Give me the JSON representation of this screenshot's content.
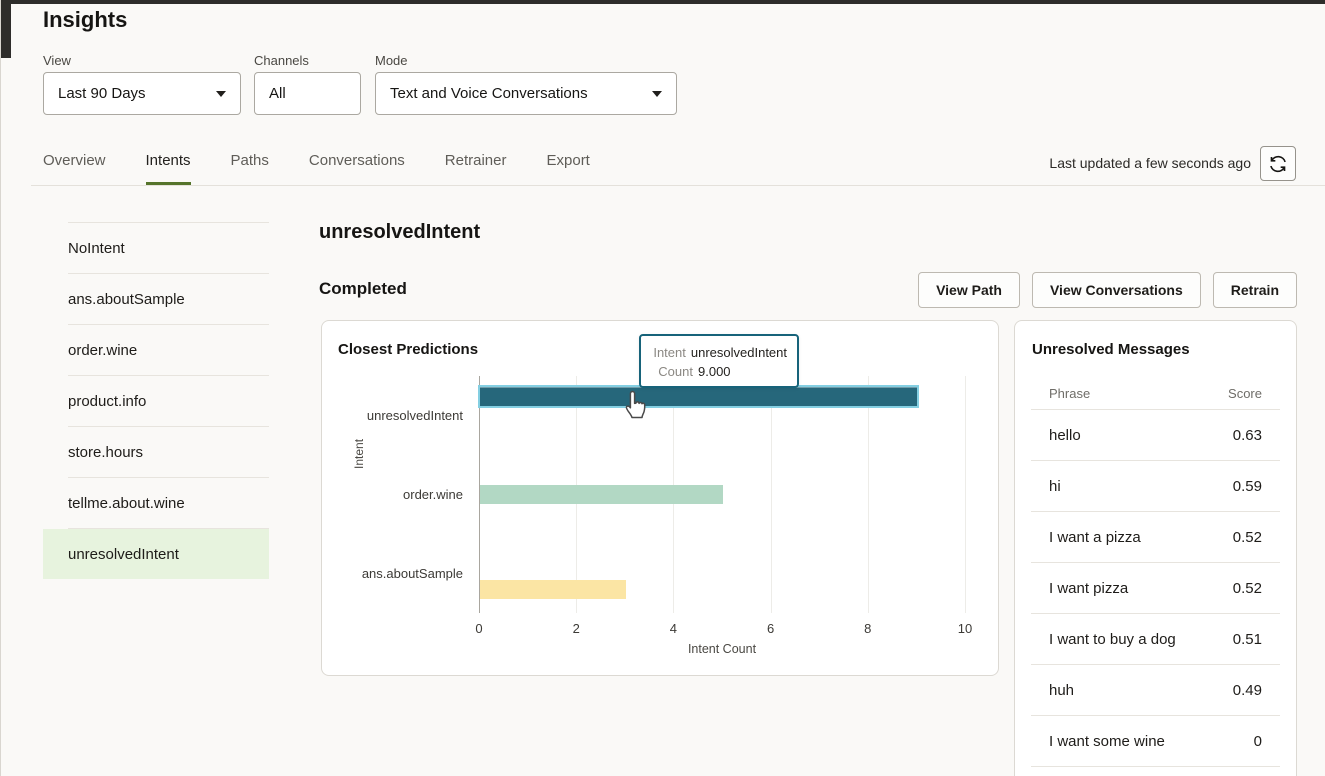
{
  "page": {
    "title": "Insights"
  },
  "filters": {
    "view": {
      "label": "View",
      "value": "Last 90 Days"
    },
    "channels": {
      "label": "Channels",
      "value": "All"
    },
    "mode": {
      "label": "Mode",
      "value": "Text and Voice Conversations"
    }
  },
  "tabs": {
    "items": [
      {
        "label": "Overview",
        "active": false
      },
      {
        "label": "Intents",
        "active": true
      },
      {
        "label": "Paths",
        "active": false
      },
      {
        "label": "Conversations",
        "active": false
      },
      {
        "label": "Retrainer",
        "active": false
      },
      {
        "label": "Export",
        "active": false
      }
    ],
    "last_updated": "Last updated a few seconds ago",
    "refresh_icon": "refresh-icon"
  },
  "sidebar": {
    "items": [
      {
        "label": "NoIntent",
        "selected": false
      },
      {
        "label": "ans.aboutSample",
        "selected": false
      },
      {
        "label": "order.wine",
        "selected": false
      },
      {
        "label": "product.info",
        "selected": false
      },
      {
        "label": "store.hours",
        "selected": false
      },
      {
        "label": "tellme.about.wine",
        "selected": false
      },
      {
        "label": "unresolvedIntent",
        "selected": true
      }
    ]
  },
  "main": {
    "title": "unresolvedIntent",
    "status": "Completed",
    "actions": [
      "View Path",
      "View Conversations",
      "Retrain"
    ]
  },
  "chart_data": {
    "type": "bar",
    "orientation": "horizontal",
    "title": "Closest Predictions",
    "categories": [
      "unresolvedIntent",
      "order.wine",
      "ans.aboutSample"
    ],
    "values": [
      9,
      5,
      3
    ],
    "bar_colors": [
      "#26677b",
      "#b2d8c4",
      "#fbe5a4"
    ],
    "highlighted_category": "unresolvedIntent",
    "highlight_outline_color": "#84cfe2",
    "xlabel": "Intent Count",
    "ylabel": "Intent",
    "xlim": [
      0,
      10
    ],
    "xticks": [
      0,
      2,
      4,
      6,
      8,
      10
    ],
    "grid": true,
    "tooltip": {
      "intent_label": "Intent",
      "intent_value": "unresolvedIntent",
      "count_label": "Count",
      "count_value": "9.000"
    }
  },
  "messages_panel": {
    "title": "Unresolved Messages",
    "columns": [
      "Phrase",
      "Score"
    ],
    "rows": [
      {
        "phrase": "hello",
        "score": "0.63"
      },
      {
        "phrase": "hi",
        "score": "0.59"
      },
      {
        "phrase": "I want a pizza",
        "score": "0.52"
      },
      {
        "phrase": "I want pizza",
        "score": "0.52"
      },
      {
        "phrase": "I want to buy a dog",
        "score": "0.51"
      },
      {
        "phrase": "huh",
        "score": "0.49"
      },
      {
        "phrase": "I want some wine",
        "score": "0"
      }
    ]
  },
  "colors": {
    "accent_green_underline": "#55742b",
    "selected_item_bg": "#e7f3de",
    "tooltip_border": "#17637a",
    "top_strip": "#2e2d2b"
  }
}
